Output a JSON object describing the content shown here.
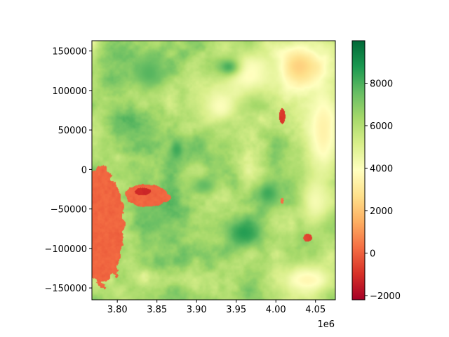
{
  "chart_data": {
    "type": "heatmap",
    "title": "",
    "xlabel": "",
    "ylabel": "",
    "x_offset_label": "1e6",
    "xlim": [
      3.768,
      4.075
    ],
    "ylim": [
      -165000,
      163000
    ],
    "x_ticks": [
      {
        "value": 3.8,
        "label": "3.80"
      },
      {
        "value": 3.85,
        "label": "3.85"
      },
      {
        "value": 3.9,
        "label": "3.90"
      },
      {
        "value": 3.95,
        "label": "3.95"
      },
      {
        "value": 4.0,
        "label": "4.00"
      },
      {
        "value": 4.05,
        "label": "4.05"
      }
    ],
    "y_ticks": [
      {
        "value": 150000,
        "label": "150000"
      },
      {
        "value": 100000,
        "label": "100000"
      },
      {
        "value": 50000,
        "label": "50000"
      },
      {
        "value": 0,
        "label": "0"
      },
      {
        "value": -50000,
        "label": "−50000"
      },
      {
        "value": -100000,
        "label": "−100000"
      },
      {
        "value": -150000,
        "label": "−150000"
      }
    ],
    "colorbar": {
      "colormap": "RdYlGn",
      "range": [
        -2200,
        10000
      ],
      "ticks": [
        {
          "value": 8000,
          "label": "8000"
        },
        {
          "value": 6000,
          "label": "6000"
        },
        {
          "value": 4000,
          "label": "4000"
        },
        {
          "value": 2000,
          "label": "2000"
        },
        {
          "value": 0,
          "label": "0"
        },
        {
          "value": -2000,
          "label": "−2000"
        }
      ],
      "stops": [
        "#a50026",
        "#d73027",
        "#f46d43",
        "#fdae61",
        "#fee08b",
        "#ffffbf",
        "#d9ef8b",
        "#a6d96a",
        "#66bd63",
        "#1a9850",
        "#006837"
      ]
    },
    "field": {
      "base_value": 6400,
      "features": [
        {
          "kind": "low",
          "x": 3.778,
          "y": -75000,
          "rx": 0.03,
          "ry": 75000,
          "value": 100
        },
        {
          "kind": "low",
          "x": 3.838,
          "y": -33000,
          "rx": 0.028,
          "ry": 14000,
          "value": 100
        },
        {
          "kind": "low",
          "x": 3.833,
          "y": -28000,
          "rx": 0.011,
          "ry": 5000,
          "value": -1200
        },
        {
          "kind": "low",
          "x": 4.008,
          "y": 68000,
          "rx": 0.004,
          "ry": 10000,
          "value": -800
        },
        {
          "kind": "low",
          "x": 4.04,
          "y": -86000,
          "rx": 0.006,
          "ry": 5000,
          "value": -500
        },
        {
          "kind": "low",
          "x": 4.008,
          "y": -40000,
          "rx": 0.002,
          "ry": 4000,
          "value": 300
        },
        {
          "kind": "dry",
          "x": 4.03,
          "y": 130000,
          "rx": 0.045,
          "ry": 40000,
          "value": 2200
        },
        {
          "kind": "dry",
          "x": 4.06,
          "y": 50000,
          "rx": 0.03,
          "ry": 90000,
          "value": 3400
        },
        {
          "kind": "dry",
          "x": 3.965,
          "y": 120000,
          "rx": 0.045,
          "ry": 40000,
          "value": 3800
        },
        {
          "kind": "dry",
          "x": 3.93,
          "y": 80000,
          "rx": 0.03,
          "ry": 30000,
          "value": 4000
        },
        {
          "kind": "dry",
          "x": 4.04,
          "y": -140000,
          "rx": 0.05,
          "ry": 25000,
          "value": 3600
        },
        {
          "kind": "dry",
          "x": 4.05,
          "y": -40000,
          "rx": 0.025,
          "ry": 40000,
          "value": 4200
        },
        {
          "kind": "wet",
          "x": 3.96,
          "y": -80000,
          "rx": 0.03,
          "ry": 25000,
          "value": 8600
        },
        {
          "kind": "wet",
          "x": 3.875,
          "y": 25000,
          "rx": 0.012,
          "ry": 18000,
          "value": 8200
        },
        {
          "kind": "wet",
          "x": 3.84,
          "y": 122000,
          "rx": 0.025,
          "ry": 28000,
          "value": 7800
        },
        {
          "kind": "wet",
          "x": 3.94,
          "y": 130000,
          "rx": 0.018,
          "ry": 14000,
          "value": 8000
        },
        {
          "kind": "wet",
          "x": 3.99,
          "y": -30000,
          "rx": 0.02,
          "ry": 20000,
          "value": 8200
        },
        {
          "kind": "wet",
          "x": 3.91,
          "y": -20000,
          "rx": 0.02,
          "ry": 14000,
          "value": 7600
        }
      ]
    }
  }
}
